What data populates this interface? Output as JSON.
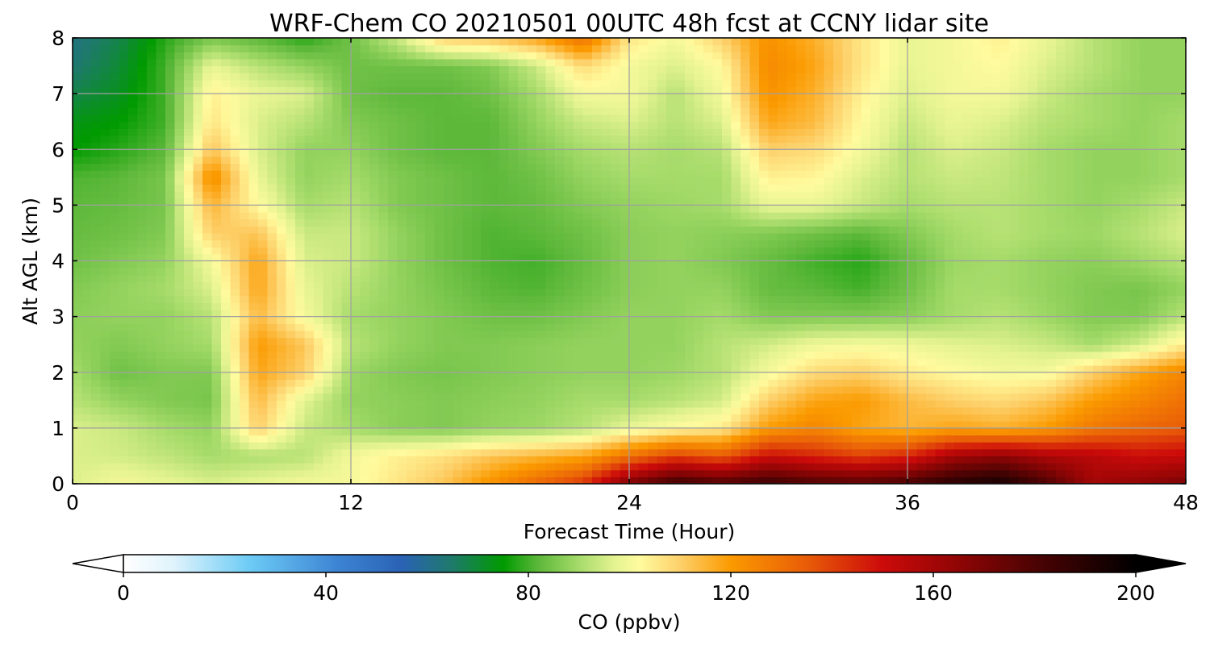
{
  "chart_data": {
    "type": "heatmap",
    "title": "WRF-Chem CO  20210501 00UTC 48h fcst at CCNY lidar site",
    "xlabel": "Forecast Time (Hour)",
    "ylabel": "Alt AGL (km)",
    "xlim": [
      0,
      48
    ],
    "ylim": [
      0,
      8
    ],
    "x_ticks": [
      "0",
      "12",
      "24",
      "36",
      "48"
    ],
    "y_ticks": [
      "0",
      "1",
      "2",
      "3",
      "4",
      "5",
      "6",
      "7",
      "8"
    ],
    "grid": true,
    "x_hours": [
      0,
      2,
      4,
      6,
      8,
      10,
      12,
      14,
      16,
      18,
      20,
      22,
      24,
      26,
      28,
      30,
      32,
      34,
      36,
      38,
      40,
      42,
      44,
      46,
      48
    ],
    "y_km": [
      0,
      0.5,
      1,
      1.5,
      2,
      2.5,
      3,
      3.5,
      4,
      4.5,
      5,
      5.5,
      6,
      6.5,
      7,
      7.5,
      8
    ],
    "values": [
      [
        96,
        100,
        98,
        96,
        98,
        100,
        100,
        106,
        112,
        122,
        132,
        142,
        170,
        185,
        180,
        185,
        180,
        178,
        182,
        190,
        195,
        180,
        160,
        165,
        170
      ],
      [
        96,
        95,
        93,
        90,
        91,
        92,
        100,
        104,
        107,
        112,
        115,
        118,
        130,
        140,
        135,
        150,
        145,
        140,
        145,
        160,
        165,
        158,
        155,
        150,
        152
      ],
      [
        96,
        94,
        90,
        88,
        110,
        94,
        90,
        87,
        86,
        88,
        89,
        92,
        98,
        102,
        105,
        120,
        125,
        118,
        115,
        118,
        116,
        120,
        128,
        132,
        135
      ],
      [
        92,
        88,
        86,
        85,
        114,
        97,
        88,
        87,
        86,
        87,
        88,
        90,
        90,
        92,
        95,
        110,
        118,
        120,
        114,
        110,
        108,
        112,
        120,
        125,
        130
      ],
      [
        90,
        84,
        86,
        86,
        118,
        110,
        89,
        86,
        85,
        86,
        87,
        88,
        88,
        89,
        92,
        100,
        108,
        110,
        105,
        102,
        100,
        100,
        110,
        118,
        125
      ],
      [
        88,
        86,
        88,
        90,
        120,
        112,
        92,
        88,
        86,
        86,
        87,
        88,
        88,
        88,
        92,
        95,
        99,
        100,
        99,
        97,
        96,
        94,
        90,
        95,
        105
      ],
      [
        87,
        88,
        88,
        92,
        114,
        100,
        90,
        88,
        86,
        84,
        84,
        86,
        88,
        88,
        90,
        86,
        86,
        86,
        87,
        90,
        92,
        89,
        86,
        86,
        92
      ],
      [
        86,
        88,
        90,
        96,
        118,
        98,
        92,
        88,
        85,
        82,
        81,
        84,
        87,
        88,
        88,
        83,
        82,
        80,
        84,
        90,
        90,
        88,
        86,
        85,
        88
      ],
      [
        84,
        86,
        88,
        100,
        118,
        96,
        94,
        88,
        84,
        81,
        80,
        83,
        87,
        88,
        86,
        83,
        80,
        78,
        83,
        89,
        90,
        88,
        87,
        89,
        92
      ],
      [
        83,
        84,
        86,
        110,
        112,
        94,
        94,
        88,
        84,
        81,
        82,
        84,
        87,
        88,
        87,
        86,
        84,
        82,
        86,
        90,
        92,
        90,
        89,
        92,
        96
      ],
      [
        82,
        83,
        85,
        115,
        102,
        90,
        92,
        86,
        84,
        82,
        83,
        86,
        88,
        89,
        90,
        98,
        98,
        94,
        90,
        92,
        92,
        90,
        88,
        90,
        94
      ],
      [
        81,
        82,
        85,
        124,
        98,
        88,
        90,
        86,
        84,
        82,
        84,
        88,
        90,
        90,
        90,
        104,
        103,
        96,
        92,
        94,
        93,
        90,
        88,
        88,
        90
      ],
      [
        75,
        78,
        82,
        112,
        96,
        88,
        88,
        84,
        82,
        82,
        86,
        90,
        92,
        90,
        92,
        110,
        108,
        100,
        92,
        96,
        94,
        90,
        88,
        88,
        90
      ],
      [
        73,
        75,
        80,
        106,
        96,
        92,
        86,
        84,
        82,
        82,
        88,
        94,
        96,
        92,
        96,
        118,
        114,
        102,
        94,
        98,
        96,
        92,
        90,
        88,
        90
      ],
      [
        68,
        72,
        80,
        104,
        98,
        96,
        84,
        82,
        82,
        84,
        90,
        100,
        100,
        92,
        100,
        122,
        116,
        104,
        96,
        100,
        100,
        94,
        90,
        88,
        88
      ],
      [
        64,
        70,
        80,
        98,
        92,
        88,
        84,
        84,
        84,
        86,
        94,
        108,
        100,
        96,
        102,
        124,
        118,
        106,
        98,
        100,
        102,
        96,
        92,
        88,
        88
      ],
      [
        62,
        68,
        78,
        85,
        82,
        78,
        84,
        94,
        110,
        112,
        118,
        130,
        106,
        100,
        110,
        122,
        116,
        106,
        98,
        100,
        104,
        98,
        92,
        88,
        88
      ]
    ],
    "colorbar": {
      "label": "CO  (ppbv)",
      "min": 0,
      "max": 200,
      "ticks": [
        "0",
        "40",
        "80",
        "120",
        "160",
        "200"
      ],
      "extend": "both",
      "stops": [
        {
          "v": 0,
          "c": "#ffffff"
        },
        {
          "v": 10,
          "c": "#dff3fc"
        },
        {
          "v": 25,
          "c": "#6ccbf5"
        },
        {
          "v": 42,
          "c": "#3d85d4"
        },
        {
          "v": 55,
          "c": "#2a62b5"
        },
        {
          "v": 65,
          "c": "#1e7a6a"
        },
        {
          "v": 75,
          "c": "#009a00"
        },
        {
          "v": 82,
          "c": "#5db83a"
        },
        {
          "v": 90,
          "c": "#a6db6a"
        },
        {
          "v": 97,
          "c": "#e4f390"
        },
        {
          "v": 102,
          "c": "#fffb9e"
        },
        {
          "v": 110,
          "c": "#fdd06a"
        },
        {
          "v": 120,
          "c": "#fb9a00"
        },
        {
          "v": 135,
          "c": "#e85c08"
        },
        {
          "v": 150,
          "c": "#cc0a0a"
        },
        {
          "v": 165,
          "c": "#8f0505"
        },
        {
          "v": 180,
          "c": "#4d0303"
        },
        {
          "v": 200,
          "c": "#000000"
        }
      ]
    }
  }
}
